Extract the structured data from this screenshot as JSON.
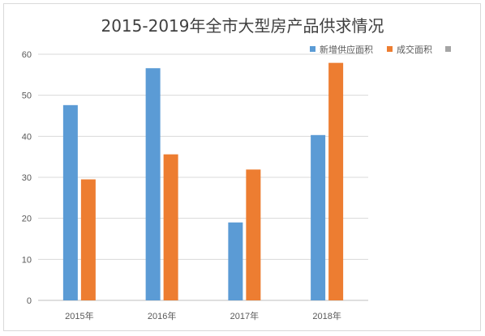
{
  "chart_data": {
    "type": "bar",
    "title": "2015-2019年全市大型房产品供求情况",
    "categories": [
      "2015年",
      "2016年",
      "2017年",
      "2018年"
    ],
    "series": [
      {
        "name": "新增供应面积",
        "color": "#5b9bd5",
        "values": [
          47.6,
          56.6,
          19.0,
          40.3
        ]
      },
      {
        "name": "成交面积",
        "color": "#ed7d31",
        "values": [
          29.5,
          35.6,
          31.9,
          57.9
        ]
      },
      {
        "name": "",
        "color": "#a5a5a5",
        "values": [
          null,
          null,
          null,
          null
        ]
      }
    ],
    "yticks": [
      "0",
      "10",
      "20",
      "30",
      "40",
      "50",
      "60"
    ],
    "ylim": [
      0,
      60
    ],
    "grid": true,
    "legend": "top-right"
  }
}
